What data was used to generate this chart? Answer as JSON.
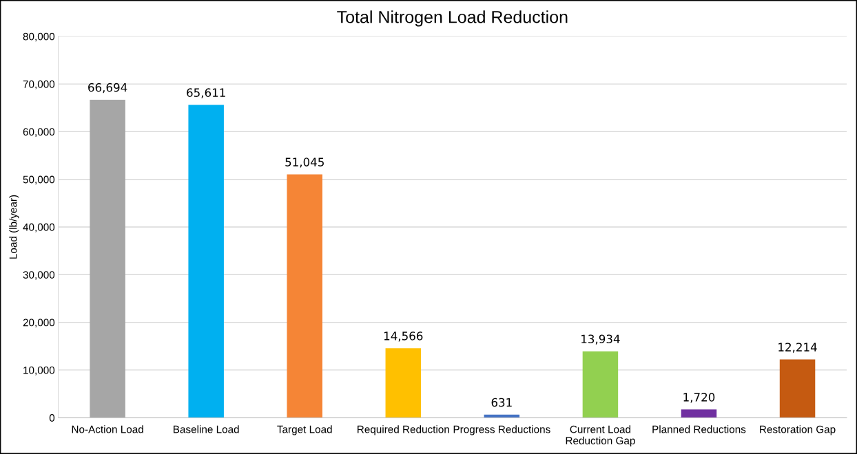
{
  "chart_data": {
    "type": "bar",
    "title": "Total Nitrogen Load Reduction",
    "ylabel": "Load (lb/year)",
    "categories": [
      "No-Action Load",
      "Baseline Load",
      "Target Load",
      "Required Reduction",
      "Progress Reductions",
      "Current Load\nReduction Gap",
      "Planned Reductions",
      "Restoration Gap"
    ],
    "values": [
      66694,
      65611,
      51045,
      14566,
      631,
      13934,
      1720,
      12214
    ],
    "value_labels": [
      "66,694",
      "65,611",
      "51,045",
      "14,566",
      "631",
      "13,934",
      "1,720",
      "12,214"
    ],
    "colors": [
      "#a6a6a6",
      "#00b0f0",
      "#f58536",
      "#ffc000",
      "#4472c4",
      "#92d050",
      "#7030a0",
      "#c55a11"
    ],
    "ylim": [
      0,
      80000
    ],
    "yticks": [
      {
        "value": 0,
        "label": "0"
      },
      {
        "value": 10000,
        "label": "10,000"
      },
      {
        "value": 20000,
        "label": "20,000"
      },
      {
        "value": 30000,
        "label": "30,000"
      },
      {
        "value": 40000,
        "label": "40,000"
      },
      {
        "value": 50000,
        "label": "50,000"
      },
      {
        "value": 60000,
        "label": "60,000"
      },
      {
        "value": 70000,
        "label": "70,000"
      },
      {
        "value": 80000,
        "label": "80,000"
      }
    ],
    "grid": "y",
    "legend": false
  }
}
